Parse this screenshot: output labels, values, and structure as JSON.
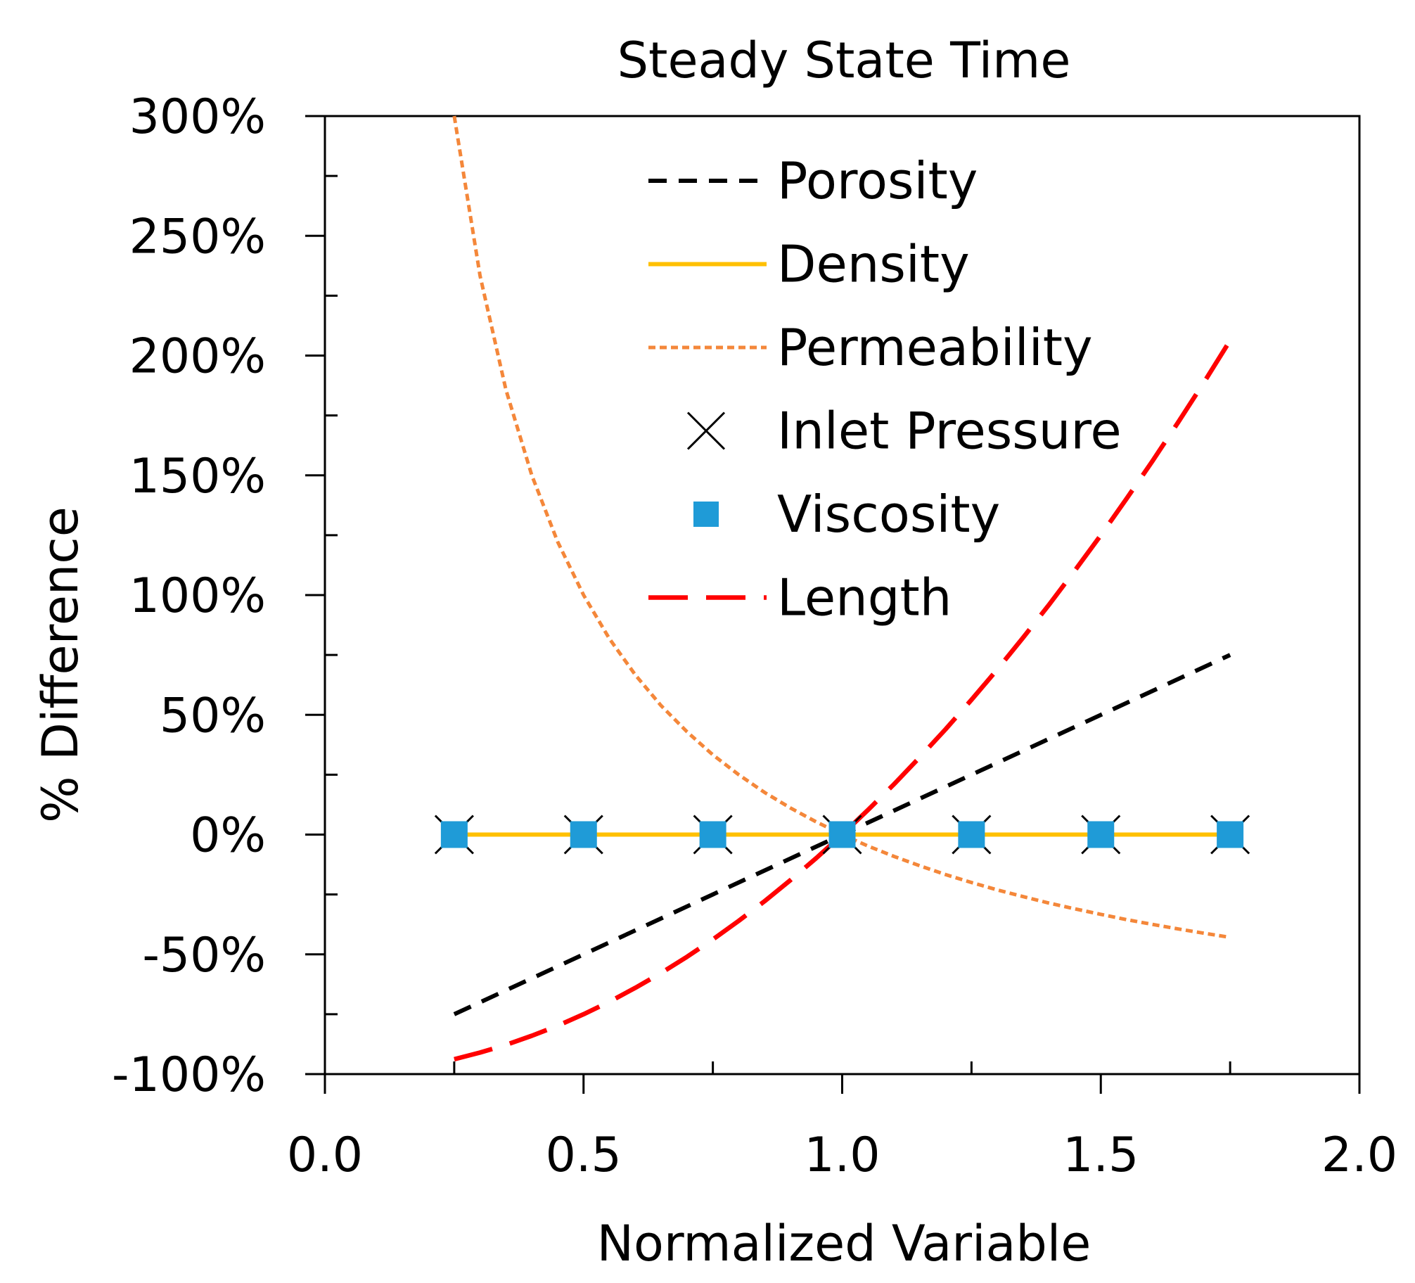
{
  "chart_data": {
    "type": "line",
    "title": "Steady State Time",
    "xlabel": "Normalized Variable",
    "ylabel": "% Difference",
    "xlim": [
      0,
      2
    ],
    "ylim": [
      -100,
      300
    ],
    "x_ticks": [
      0,
      0.5,
      1,
      1.5,
      2
    ],
    "x_tick_labels": [
      "0.0",
      "0.5",
      "1.0",
      "1.5",
      "2.0"
    ],
    "y_ticks": [
      -100,
      -50,
      0,
      50,
      100,
      150,
      200,
      250,
      300
    ],
    "y_tick_labels": [
      "-100%",
      "-50%",
      "0%",
      "50%",
      "100%",
      "150%",
      "200%",
      "250%",
      "300%"
    ],
    "grid": false,
    "legend_position": "top-center",
    "series": [
      {
        "name": "Porosity",
        "style": "dashed",
        "marker": "none",
        "color": "#000000",
        "x": [
          0.25,
          0.5,
          0.75,
          1.0,
          1.25,
          1.5,
          1.75
        ],
        "values": [
          -75,
          -50,
          -25,
          0,
          25,
          50,
          75
        ]
      },
      {
        "name": "Density",
        "style": "solid",
        "marker": "none",
        "color": "#FFC000",
        "x": [
          0.25,
          0.5,
          0.75,
          1.0,
          1.25,
          1.5,
          1.75
        ],
        "values": [
          0,
          0,
          0,
          0,
          0,
          0,
          0
        ]
      },
      {
        "name": "Permeability",
        "style": "dotted",
        "marker": "none",
        "color": "#F4873A",
        "x": [
          0.25,
          0.3,
          0.35,
          0.4,
          0.45,
          0.5,
          0.55,
          0.6,
          0.65,
          0.7,
          0.75,
          0.8,
          0.85,
          0.9,
          0.95,
          1.0,
          1.05,
          1.1,
          1.15,
          1.2,
          1.25,
          1.3,
          1.35,
          1.4,
          1.45,
          1.5,
          1.55,
          1.6,
          1.65,
          1.7,
          1.75
        ],
        "values": [
          300,
          233.3,
          185.7,
          150,
          122.2,
          100,
          81.8,
          66.7,
          53.8,
          42.9,
          33.3,
          25,
          17.6,
          11.1,
          5.3,
          0,
          -4.8,
          -9.1,
          -13,
          -16.7,
          -20,
          -23.1,
          -25.9,
          -28.6,
          -31,
          -33.3,
          -35.5,
          -37.5,
          -39.4,
          -41.2,
          -42.9
        ]
      },
      {
        "name": "Inlet Pressure",
        "style": "none",
        "marker": "x",
        "color": "#000000",
        "x": [
          0.25,
          0.5,
          0.75,
          1.0,
          1.25,
          1.5,
          1.75
        ],
        "values": [
          0,
          0,
          0,
          0,
          0,
          0,
          0
        ]
      },
      {
        "name": "Viscosity",
        "style": "none",
        "marker": "square",
        "color": "#1F9BD7",
        "x": [
          0.25,
          0.5,
          0.75,
          1.0,
          1.25,
          1.5,
          1.75
        ],
        "values": [
          0,
          0,
          0,
          0,
          0,
          0,
          0
        ]
      },
      {
        "name": "Length",
        "style": "long-dash",
        "marker": "none",
        "color": "#FF0000",
        "x": [
          0.25,
          0.3,
          0.35,
          0.4,
          0.45,
          0.5,
          0.55,
          0.6,
          0.65,
          0.7,
          0.75,
          0.8,
          0.85,
          0.9,
          0.95,
          1.0,
          1.05,
          1.1,
          1.15,
          1.2,
          1.25,
          1.3,
          1.35,
          1.4,
          1.45,
          1.5,
          1.55,
          1.6,
          1.65,
          1.7,
          1.75
        ],
        "values": [
          -93.8,
          -91,
          -87.8,
          -84,
          -79.8,
          -75,
          -69.8,
          -64,
          -57.8,
          -51,
          -43.8,
          -36,
          -27.8,
          -19,
          -9.8,
          0,
          10.3,
          21,
          32.3,
          44,
          56.3,
          69,
          82.3,
          96,
          110.3,
          125,
          140.3,
          156,
          172.3,
          189,
          206.3
        ]
      }
    ]
  }
}
